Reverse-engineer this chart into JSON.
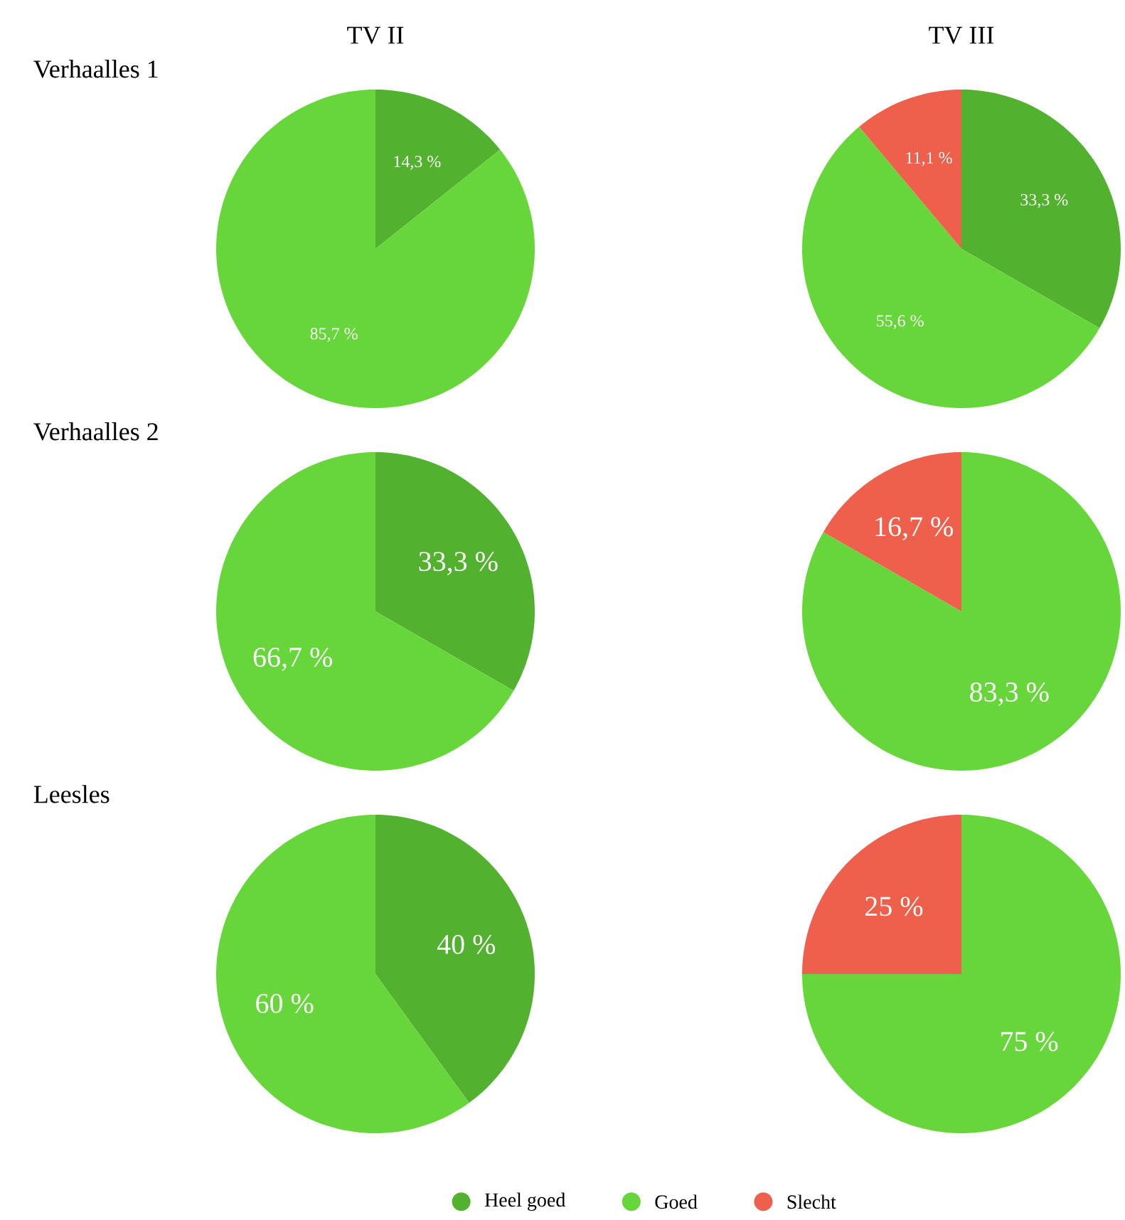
{
  "chart_data": [
    {
      "type": "pie",
      "title": "TV II",
      "subtitle": "Verhaalles 1",
      "categories": [
        null,
        null,
        null
      ],
      "values": [
        14.3,
        85.7,
        0
      ],
      "colors": [
        "#52b12f",
        "#66d63a",
        "#ee604c"
      ],
      "value_labels": [
        "14,3 %",
        "85,7 %",
        null
      ]
    },
    {
      "type": "pie",
      "title": "TV III",
      "categories": [
        null,
        null,
        null
      ],
      "values": [
        33.3,
        55.6,
        11.1
      ],
      "colors": [
        "#52b12f",
        "#66d63a",
        "#ee604c"
      ],
      "value_labels": [
        "33,3 %",
        "55,6 %",
        "11,1 %"
      ]
    },
    {
      "type": "pie",
      "subtitle": "Verhaalles 2",
      "categories": [
        null,
        null,
        null
      ],
      "values": [
        33.3,
        66.7,
        0
      ],
      "colors": [
        "#52b12f",
        "#66d63a",
        "#ee604c"
      ],
      "value_labels": [
        "33,3 %",
        "66,7 %",
        null
      ]
    },
    {
      "type": "pie",
      "categories": [
        null,
        null,
        null
      ],
      "values": [
        0,
        83.3,
        16.7
      ],
      "colors": [
        "#52b12f",
        "#66d63a",
        "#ee604c"
      ],
      "value_labels": [
        null,
        "83,3 %",
        "16,7 %"
      ]
    },
    {
      "type": "pie",
      "subtitle": "Leesles",
      "categories": [
        null,
        null,
        null
      ],
      "values": [
        40,
        60,
        0
      ],
      "colors": [
        "#52b12f",
        "#66d63a",
        "#ee604c"
      ],
      "value_labels": [
        "40 %",
        "60 %",
        null
      ]
    },
    {
      "type": "pie",
      "categories": [
        "Heel goed",
        "Goed",
        "Slecht"
      ],
      "values": [
        0,
        75,
        25
      ],
      "colors": [
        "#52b12f",
        "#66d63a",
        "#ee604c"
      ],
      "value_labels": [
        null,
        "75 %",
        "25 %"
      ],
      "legend": "bottom"
    }
  ]
}
